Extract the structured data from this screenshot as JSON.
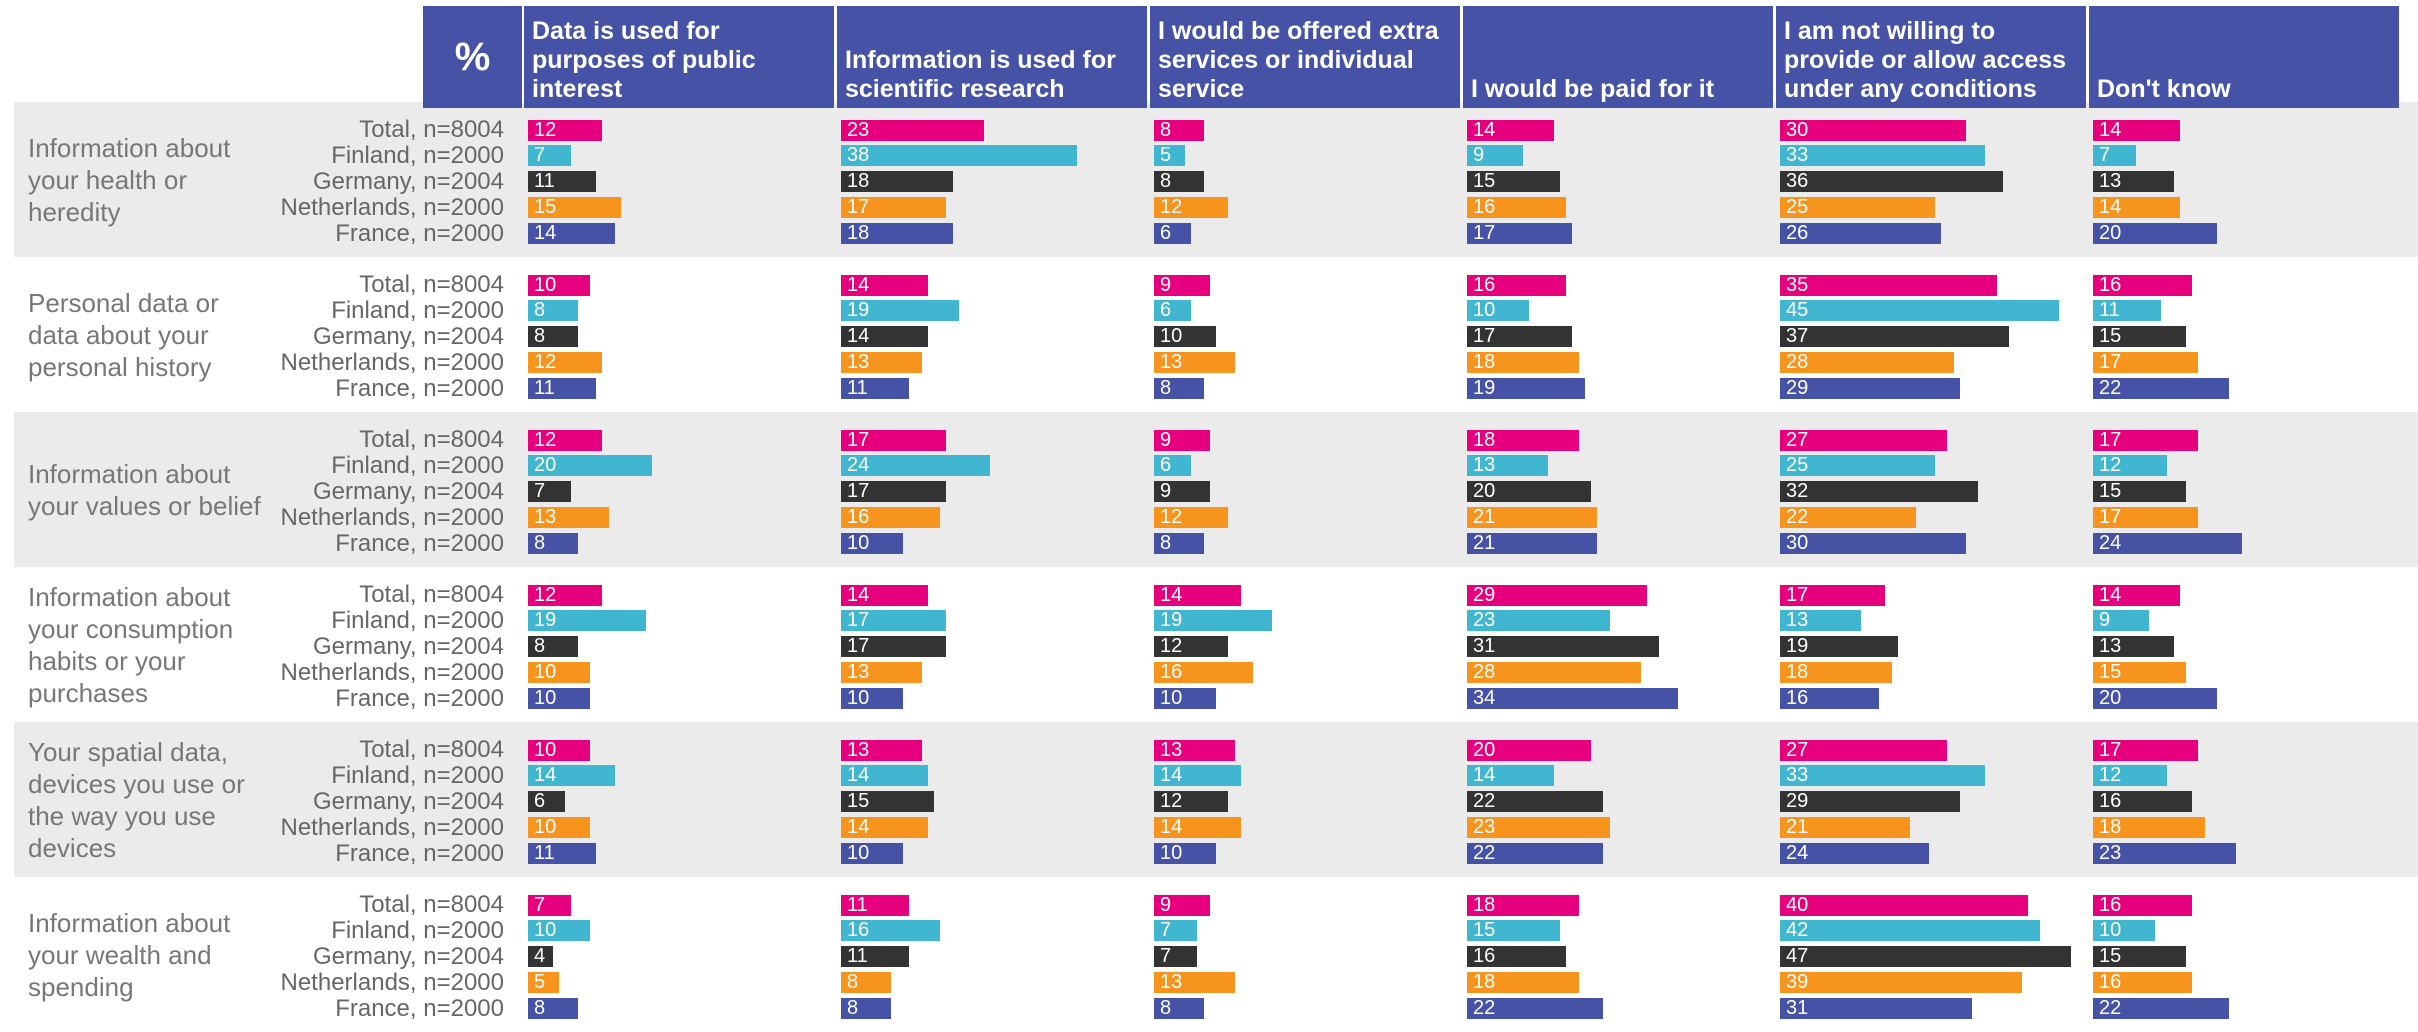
{
  "chart_data": {
    "type": "bar",
    "corner_label": "%",
    "columns": [
      "Data is used for purposes of public interest",
      "Information is used for scientific research",
      "I would be offered extra services or individual service",
      "I would be paid for it",
      "I am not willing to provide or allow access under any conditions",
      "Don't know"
    ],
    "series": [
      {
        "name": "Total, n=8004",
        "color": "#e6007e"
      },
      {
        "name": "Finland, n=2000",
        "color": "#41b6d0"
      },
      {
        "name": "Germany, n=2004",
        "color": "#333333"
      },
      {
        "name": "Netherlands, n=2000",
        "color": "#f7941d"
      },
      {
        "name": "France, n=2000",
        "color": "#4652a5"
      }
    ],
    "xlim": [
      0,
      50
    ],
    "groups": [
      {
        "name": "Information about your health or heredity",
        "values": [
          [
            12,
            7,
            11,
            15,
            14
          ],
          [
            23,
            38,
            18,
            17,
            18
          ],
          [
            8,
            5,
            8,
            12,
            6
          ],
          [
            14,
            9,
            15,
            16,
            17
          ],
          [
            30,
            33,
            36,
            25,
            26
          ],
          [
            14,
            7,
            13,
            14,
            20
          ]
        ]
      },
      {
        "name": "Personal data or data about your personal history",
        "values": [
          [
            10,
            8,
            8,
            12,
            11
          ],
          [
            14,
            19,
            14,
            13,
            11
          ],
          [
            9,
            6,
            10,
            13,
            8
          ],
          [
            16,
            10,
            17,
            18,
            19
          ],
          [
            35,
            45,
            37,
            28,
            29
          ],
          [
            16,
            11,
            15,
            17,
            22
          ]
        ]
      },
      {
        "name": "Information about your values or belief",
        "values": [
          [
            12,
            20,
            7,
            13,
            8
          ],
          [
            17,
            24,
            17,
            16,
            10
          ],
          [
            9,
            6,
            9,
            12,
            8
          ],
          [
            18,
            13,
            20,
            21,
            21
          ],
          [
            27,
            25,
            32,
            22,
            30
          ],
          [
            17,
            12,
            15,
            17,
            24
          ]
        ]
      },
      {
        "name": "Information about your consumption habits or your purchases",
        "values": [
          [
            12,
            19,
            8,
            10,
            10
          ],
          [
            14,
            17,
            17,
            13,
            10
          ],
          [
            14,
            19,
            12,
            16,
            10
          ],
          [
            29,
            23,
            31,
            28,
            34
          ],
          [
            17,
            13,
            19,
            18,
            16
          ],
          [
            14,
            9,
            13,
            15,
            20
          ]
        ]
      },
      {
        "name": "Your spatial data, devices you use or the way you use devices",
        "values": [
          [
            10,
            14,
            6,
            10,
            11
          ],
          [
            13,
            14,
            15,
            14,
            10
          ],
          [
            13,
            14,
            12,
            14,
            10
          ],
          [
            20,
            14,
            22,
            23,
            22
          ],
          [
            27,
            33,
            29,
            21,
            24
          ],
          [
            17,
            12,
            16,
            18,
            23
          ]
        ]
      },
      {
        "name": "Information about your wealth and spending",
        "values": [
          [
            7,
            10,
            4,
            5,
            8
          ],
          [
            11,
            16,
            11,
            8,
            8
          ],
          [
            9,
            7,
            7,
            13,
            8
          ],
          [
            18,
            15,
            16,
            18,
            22
          ],
          [
            40,
            42,
            47,
            39,
            31
          ],
          [
            16,
            10,
            15,
            16,
            22
          ]
        ]
      }
    ]
  }
}
